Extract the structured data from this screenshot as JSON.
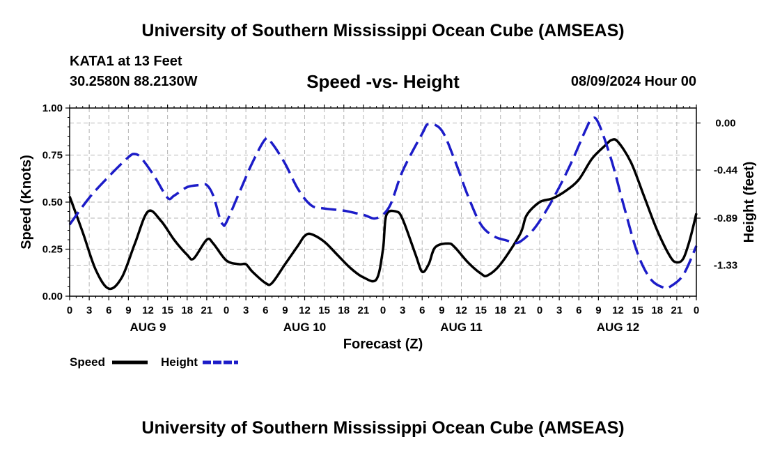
{
  "header": {
    "title": "University of Southern Mississippi Ocean Cube (AMSEAS)",
    "station": "KATA1 at 13 Feet",
    "coords": "30.2580N  88.2130W",
    "run_time": "08/09/2024 Hour 00"
  },
  "footer": {
    "title": "University of Southern Mississippi Ocean Cube (AMSEAS)"
  },
  "chart_data": {
    "type": "line",
    "title": "Speed -vs- Height",
    "xlabel": "Forecast (Z)",
    "ylabel_left": "Speed (Knots)",
    "ylabel_right": "Height (feet)",
    "x_range_hours": [
      0,
      96
    ],
    "ylim_left": [
      0,
      1.0
    ],
    "ylim_right": [
      -1.62,
      0.14
    ],
    "x_tick_hours": [
      0,
      3,
      6,
      9,
      12,
      15,
      18,
      21,
      24,
      27,
      30,
      33,
      36,
      39,
      42,
      45,
      48,
      51,
      54,
      57,
      60,
      63,
      66,
      69,
      72,
      75,
      78,
      81,
      84,
      87,
      90,
      93,
      96
    ],
    "x_tick_labels": [
      "0",
      "3",
      "6",
      "9",
      "12",
      "15",
      "18",
      "21",
      "0",
      "3",
      "6",
      "9",
      "12",
      "15",
      "18",
      "21",
      "0",
      "3",
      "6",
      "9",
      "12",
      "15",
      "18",
      "21",
      "0",
      "3",
      "6",
      "9",
      "12",
      "15",
      "18",
      "21",
      "0"
    ],
    "y_left_ticks": [
      0,
      0.25,
      0.5,
      0.75,
      1.0
    ],
    "y_left_tick_labels": [
      "0.00",
      "0.25",
      "0.50",
      "0.75",
      "1.00"
    ],
    "y_right_ticks": [
      0.0,
      -0.44,
      -0.89,
      -1.33
    ],
    "y_right_tick_labels": [
      "0.00",
      "-0.44",
      "-0.89",
      "-1.33"
    ],
    "day_labels": [
      {
        "label": "AUG 9",
        "hour": 12
      },
      {
        "label": "AUG 10",
        "hour": 36
      },
      {
        "label": "AUG 11",
        "hour": 60
      },
      {
        "label": "AUG 12",
        "hour": 84
      }
    ],
    "series": [
      {
        "name": "Speed",
        "axis": "left",
        "color": "#000000",
        "dash": "solid",
        "points": [
          [
            0,
            0.53
          ],
          [
            2,
            0.34
          ],
          [
            4,
            0.14
          ],
          [
            6,
            0.04
          ],
          [
            8,
            0.1
          ],
          [
            10,
            0.28
          ],
          [
            12,
            0.45
          ],
          [
            14,
            0.4
          ],
          [
            16,
            0.3
          ],
          [
            18,
            0.22
          ],
          [
            19,
            0.2
          ],
          [
            21,
            0.3
          ],
          [
            22,
            0.28
          ],
          [
            24,
            0.19
          ],
          [
            26,
            0.17
          ],
          [
            27,
            0.17
          ],
          [
            28,
            0.13
          ],
          [
            30,
            0.07
          ],
          [
            31,
            0.07
          ],
          [
            33,
            0.17
          ],
          [
            35,
            0.27
          ],
          [
            36,
            0.32
          ],
          [
            37,
            0.33
          ],
          [
            39,
            0.29
          ],
          [
            41,
            0.22
          ],
          [
            43,
            0.15
          ],
          [
            45,
            0.1
          ],
          [
            47,
            0.09
          ],
          [
            48,
            0.25
          ],
          [
            48.5,
            0.43
          ],
          [
            50,
            0.45
          ],
          [
            51,
            0.41
          ],
          [
            53,
            0.22
          ],
          [
            54,
            0.13
          ],
          [
            55,
            0.17
          ],
          [
            56,
            0.26
          ],
          [
            58,
            0.28
          ],
          [
            59,
            0.26
          ],
          [
            61,
            0.18
          ],
          [
            63,
            0.12
          ],
          [
            64,
            0.11
          ],
          [
            66,
            0.17
          ],
          [
            69,
            0.33
          ],
          [
            70,
            0.43
          ],
          [
            72,
            0.5
          ],
          [
            74,
            0.52
          ],
          [
            76,
            0.56
          ],
          [
            78,
            0.62
          ],
          [
            80,
            0.73
          ],
          [
            82,
            0.8
          ],
          [
            83,
            0.83
          ],
          [
            84,
            0.82
          ],
          [
            86,
            0.71
          ],
          [
            88,
            0.53
          ],
          [
            90,
            0.35
          ],
          [
            92,
            0.21
          ],
          [
            93,
            0.18
          ],
          [
            94,
            0.2
          ],
          [
            95,
            0.3
          ],
          [
            96,
            0.44
          ]
        ]
      },
      {
        "name": "Height",
        "axis": "right",
        "color": "#1c1cc8",
        "dash": "dashed",
        "points": [
          [
            0,
            -0.95
          ],
          [
            3,
            -0.7
          ],
          [
            6,
            -0.5
          ],
          [
            9,
            -0.32
          ],
          [
            10,
            -0.29
          ],
          [
            11,
            -0.33
          ],
          [
            13,
            -0.5
          ],
          [
            15,
            -0.7
          ],
          [
            16,
            -0.68
          ],
          [
            18,
            -0.6
          ],
          [
            20,
            -0.58
          ],
          [
            21,
            -0.58
          ],
          [
            22,
            -0.68
          ],
          [
            23,
            -0.89
          ],
          [
            23.5,
            -0.95
          ],
          [
            24,
            -0.93
          ],
          [
            26,
            -0.65
          ],
          [
            28,
            -0.37
          ],
          [
            30,
            -0.15
          ],
          [
            31,
            -0.19
          ],
          [
            33,
            -0.38
          ],
          [
            35,
            -0.62
          ],
          [
            37,
            -0.77
          ],
          [
            39,
            -0.8
          ],
          [
            42,
            -0.82
          ],
          [
            45,
            -0.86
          ],
          [
            47,
            -0.89
          ],
          [
            49,
            -0.78
          ],
          [
            51,
            -0.45
          ],
          [
            54,
            -0.1
          ],
          [
            55,
            -0.01
          ],
          [
            57,
            -0.07
          ],
          [
            59,
            -0.35
          ],
          [
            61,
            -0.68
          ],
          [
            63,
            -0.95
          ],
          [
            65,
            -1.06
          ],
          [
            67,
            -1.1
          ],
          [
            68,
            -1.12
          ],
          [
            69,
            -1.11
          ],
          [
            71,
            -1.0
          ],
          [
            73,
            -0.82
          ],
          [
            75,
            -0.6
          ],
          [
            77,
            -0.35
          ],
          [
            79,
            -0.07
          ],
          [
            80,
            0.04
          ],
          [
            81,
            0.0
          ],
          [
            83,
            -0.35
          ],
          [
            85,
            -0.8
          ],
          [
            87,
            -1.22
          ],
          [
            89,
            -1.46
          ],
          [
            91,
            -1.54
          ],
          [
            92,
            -1.53
          ],
          [
            94,
            -1.42
          ],
          [
            96,
            -1.15
          ]
        ]
      }
    ]
  }
}
